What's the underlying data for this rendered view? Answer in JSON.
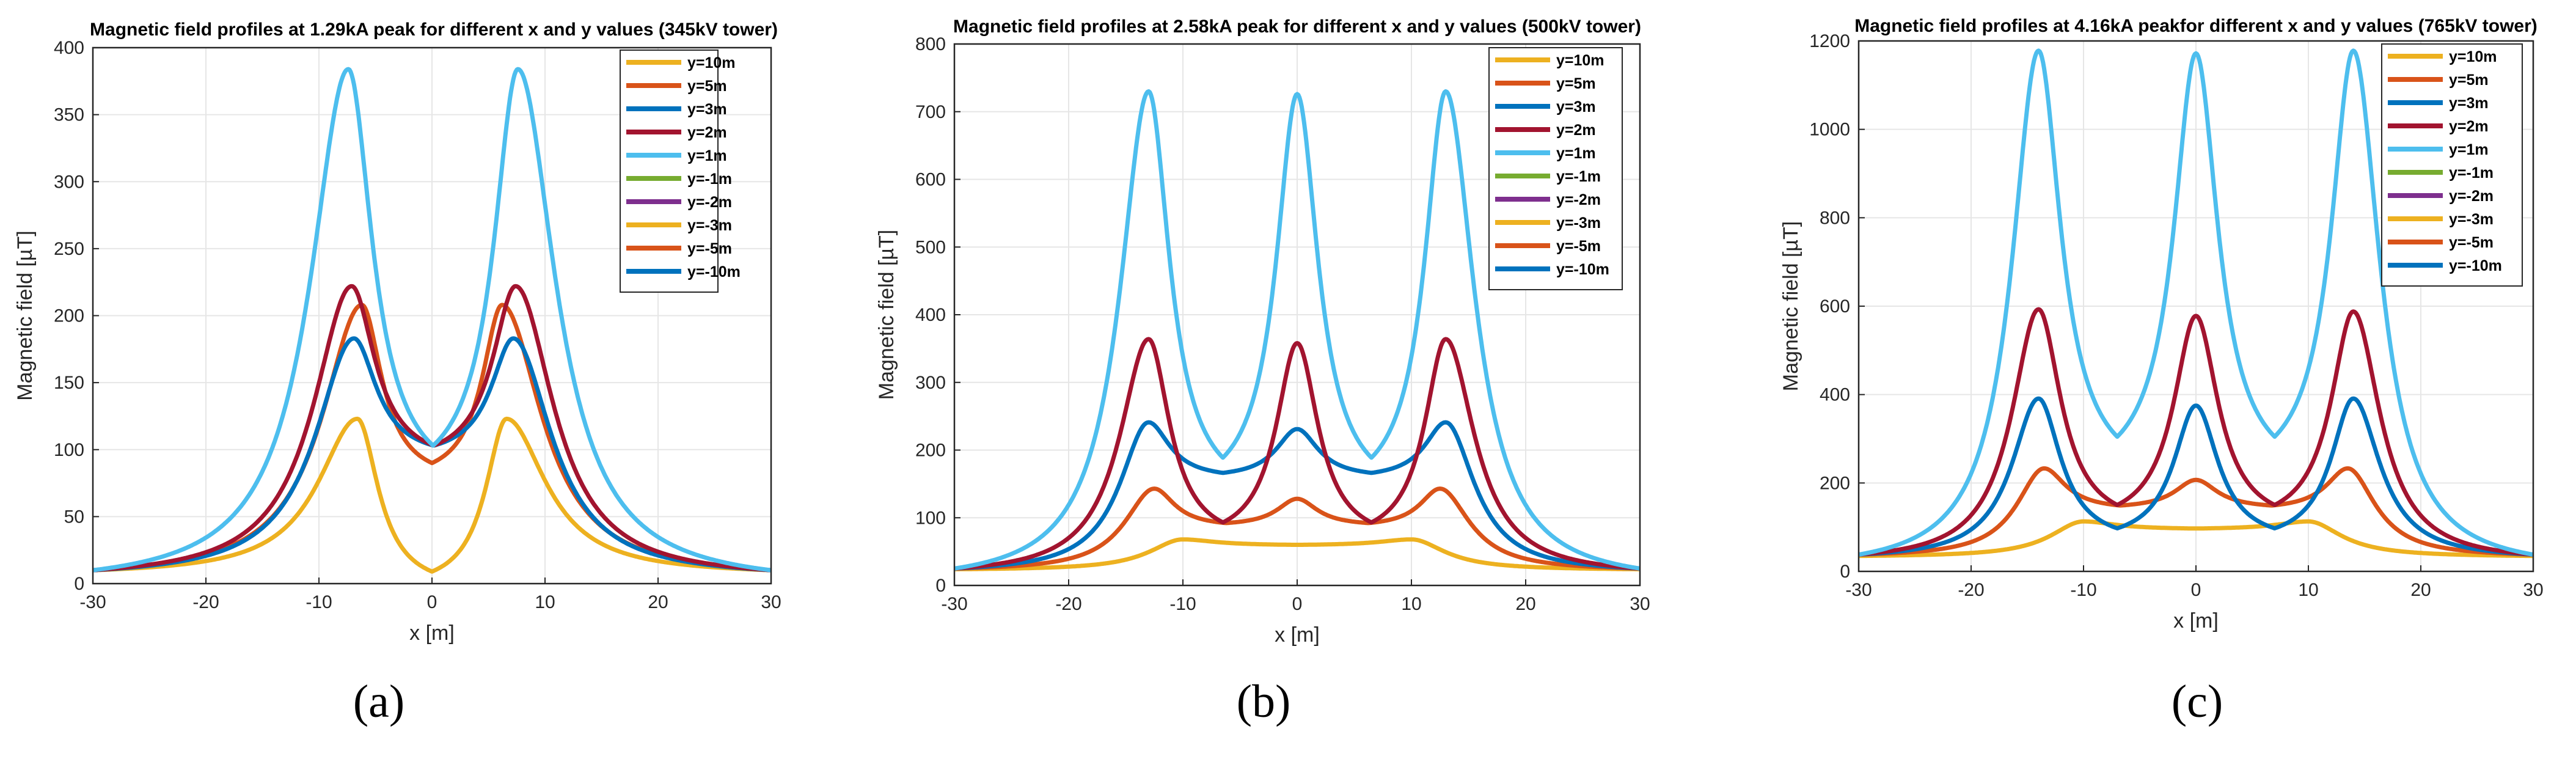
{
  "figure": {
    "captions": [
      "(a)",
      "(b)",
      "(c)"
    ]
  },
  "chart_data": [
    {
      "type": "line",
      "title": "Magnetic field profiles at 1.29kA peak for different x and y values (345kV tower)",
      "xlabel": "x [m]",
      "ylabel": "Magnetic field [µT]",
      "xlim": [
        -30,
        30
      ],
      "ylim": [
        0,
        400
      ],
      "xticks": [
        -30,
        -20,
        -10,
        0,
        10,
        20,
        30
      ],
      "yticks": [
        0,
        50,
        100,
        150,
        200,
        250,
        300,
        350,
        400
      ],
      "grid": true,
      "legend_position": "top-right",
      "phases": [
        -7.4,
        0,
        7.4
      ],
      "series": [
        {
          "name": "y=10m",
          "color": "#EDB120",
          "peaks": [
            {
              "x": -6.6,
              "y": 123
            },
            {
              "x": 6.6,
              "y": 123
            }
          ],
          "center": 9,
          "edge": 10
        },
        {
          "name": "y=5m",
          "color": "#D95319",
          "peaks": [
            {
              "x": -6.2,
              "y": 208
            },
            {
              "x": 6.2,
              "y": 208
            }
          ],
          "center": 90,
          "edge": 10
        },
        {
          "name": "y=3m",
          "color": "#0072BD",
          "peaks": [
            {
              "x": -6.9,
              "y": 183
            },
            {
              "x": 7.2,
              "y": 183
            }
          ],
          "center": 103,
          "edge": 10
        },
        {
          "name": "y=2m",
          "color": "#A2142F",
          "peaks": [
            {
              "x": -7.1,
              "y": 222
            },
            {
              "x": 7.4,
              "y": 222
            }
          ],
          "center": 103,
          "edge": 10
        },
        {
          "name": "y=1m",
          "color": "#4DBEEE",
          "peaks": [
            {
              "x": -7.4,
              "y": 384
            },
            {
              "x": 7.6,
              "y": 384
            }
          ],
          "center": 103,
          "edge": 10
        },
        {
          "name": "y=-1m",
          "color": "#77AC30"
        },
        {
          "name": "y=-2m",
          "color": "#7E2F8E"
        },
        {
          "name": "y=-3m",
          "color": "#EDB120"
        },
        {
          "name": "y=-5m",
          "color": "#D95319"
        },
        {
          "name": "y=-10m",
          "color": "#0072BD"
        }
      ]
    },
    {
      "type": "line",
      "title": "Magnetic field profiles at 2.58kA peak for different x and y values (500kV tower)",
      "xlabel": "x [m]",
      "ylabel": "Magnetic field [µT]",
      "xlim": [
        -30,
        30
      ],
      "ylim": [
        0,
        800
      ],
      "xticks": [
        -30,
        -20,
        -10,
        0,
        10,
        20,
        30
      ],
      "yticks": [
        0,
        100,
        200,
        300,
        400,
        500,
        600,
        700,
        800
      ],
      "grid": true,
      "legend_position": "top-right",
      "phases": [
        -13,
        0,
        13
      ],
      "series": [
        {
          "name": "y=10m",
          "color": "#EDB120",
          "peaks": [
            {
              "x": -10,
              "y": 68
            },
            {
              "x": 10,
              "y": 68
            }
          ],
          "center": 60,
          "edge": 24
        },
        {
          "name": "y=5m",
          "color": "#D95319",
          "peaks": [
            {
              "x": -12.5,
              "y": 143
            },
            {
              "x": 0,
              "y": 128
            },
            {
              "x": 12.5,
              "y": 143
            }
          ],
          "center": 128,
          "edge": 25
        },
        {
          "name": "y=3m",
          "color": "#0072BD",
          "peaks": [
            {
              "x": -13,
              "y": 241
            },
            {
              "x": 0,
              "y": 231
            },
            {
              "x": 13,
              "y": 241
            }
          ],
          "center": 231,
          "edge": 25
        },
        {
          "name": "y=2m",
          "color": "#A2142F",
          "peaks": [
            {
              "x": -13,
              "y": 364
            },
            {
              "x": 0,
              "y": 358
            },
            {
              "x": 13,
              "y": 364
            }
          ],
          "center": 358,
          "edge": 25
        },
        {
          "name": "y=1m",
          "color": "#4DBEEE",
          "peaks": [
            {
              "x": -13,
              "y": 730
            },
            {
              "x": 0,
              "y": 726
            },
            {
              "x": 13,
              "y": 730
            }
          ],
          "center": 726,
          "edge": 25
        },
        {
          "name": "y=-1m",
          "color": "#77AC30"
        },
        {
          "name": "y=-2m",
          "color": "#7E2F8E"
        },
        {
          "name": "y=-3m",
          "color": "#EDB120"
        },
        {
          "name": "y=-5m",
          "color": "#D95319"
        },
        {
          "name": "y=-10m",
          "color": "#0072BD"
        }
      ]
    },
    {
      "type": "line",
      "title": "Magnetic field profiles at 4.16kA peakfor different x and y values (765kV tower)",
      "xlabel": "x [m]",
      "ylabel": "Magnetic field [µT]",
      "xlim": [
        -30,
        30
      ],
      "ylim": [
        0,
        1200
      ],
      "xticks": [
        -30,
        -20,
        -10,
        0,
        10,
        20,
        30
      ],
      "yticks": [
        0,
        200,
        400,
        600,
        800,
        1000,
        1200
      ],
      "grid": true,
      "legend_position": "top-right",
      "phases": [
        -14,
        0,
        14
      ],
      "series": [
        {
          "name": "y=10m",
          "color": "#EDB120",
          "peaks": [
            {
              "x": -10,
              "y": 113
            },
            {
              "x": 10,
              "y": 113
            }
          ],
          "center": 97,
          "edge": 35
        },
        {
          "name": "y=5m",
          "color": "#D95319",
          "peaks": [
            {
              "x": -13.5,
              "y": 233
            },
            {
              "x": 0,
              "y": 207
            },
            {
              "x": 13.5,
              "y": 233
            }
          ],
          "center": 207,
          "edge": 38
        },
        {
          "name": "y=3m",
          "color": "#0072BD",
          "peaks": [
            {
              "x": -14,
              "y": 391
            },
            {
              "x": 0,
              "y": 375
            },
            {
              "x": 14,
              "y": 391
            }
          ],
          "center": 375,
          "edge": 38
        },
        {
          "name": "y=2m",
          "color": "#A2142F",
          "peaks": [
            {
              "x": -14,
              "y": 593
            },
            {
              "x": 0,
              "y": 578
            },
            {
              "x": 14,
              "y": 588
            }
          ],
          "center": 578,
          "edge": 38
        },
        {
          "name": "y=1m",
          "color": "#4DBEEE",
          "peaks": [
            {
              "x": -14,
              "y": 1178
            },
            {
              "x": 0,
              "y": 1172
            },
            {
              "x": 14,
              "y": 1178
            }
          ],
          "center": 1172,
          "edge": 38
        },
        {
          "name": "y=-1m",
          "color": "#77AC30"
        },
        {
          "name": "y=-2m",
          "color": "#7E2F8E"
        },
        {
          "name": "y=-3m",
          "color": "#EDB120"
        },
        {
          "name": "y=-5m",
          "color": "#D95319"
        },
        {
          "name": "y=-10m",
          "color": "#0072BD"
        }
      ]
    }
  ]
}
